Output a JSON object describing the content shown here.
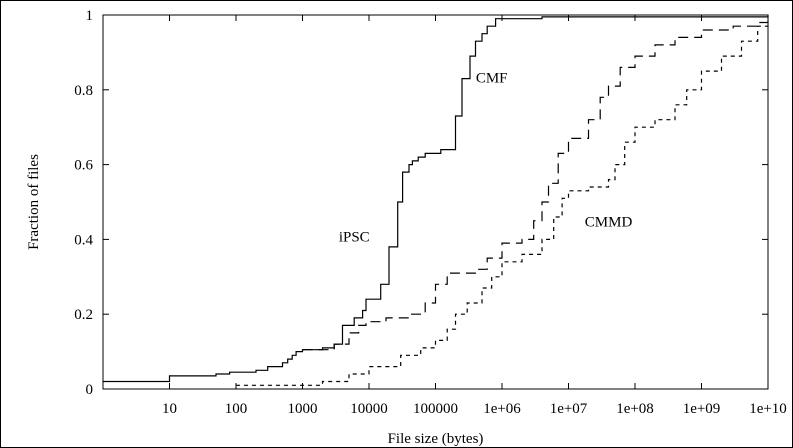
{
  "chart_data": {
    "type": "line",
    "xlabel": "File size (bytes)",
    "ylabel": "Fraction of files",
    "x_scale": "log",
    "xlim": [
      1,
      10000000000
    ],
    "ylim": [
      0,
      1
    ],
    "x_ticks": [
      {
        "value": 10,
        "label": "10"
      },
      {
        "value": 100,
        "label": "100"
      },
      {
        "value": 1000,
        "label": "1000"
      },
      {
        "value": 10000,
        "label": "10000"
      },
      {
        "value": 100000,
        "label": "100000"
      },
      {
        "value": 1000000,
        "label": "1e+06"
      },
      {
        "value": 10000000,
        "label": "1e+07"
      },
      {
        "value": 100000000,
        "label": "1e+08"
      },
      {
        "value": 1000000000,
        "label": "1e+09"
      },
      {
        "value": 10000000000,
        "label": "1e+10"
      }
    ],
    "y_ticks": [
      {
        "value": 0,
        "label": "0"
      },
      {
        "value": 0.2,
        "label": "0.2"
      },
      {
        "value": 0.4,
        "label": "0.4"
      },
      {
        "value": 0.6,
        "label": "0.6"
      },
      {
        "value": 0.8,
        "label": "0.8"
      },
      {
        "value": 1,
        "label": "1"
      }
    ],
    "grid": false,
    "series": [
      {
        "name": "iPSC",
        "style": "solid",
        "color": "#000000",
        "label_at": {
          "x": 6000,
          "y": 0.395
        },
        "points": [
          [
            1,
            0.02
          ],
          [
            10,
            0.02
          ],
          [
            10,
            0.035
          ],
          [
            50,
            0.04
          ],
          [
            80,
            0.045
          ],
          [
            200,
            0.05
          ],
          [
            300,
            0.06
          ],
          [
            500,
            0.07
          ],
          [
            600,
            0.08
          ],
          [
            700,
            0.09
          ],
          [
            800,
            0.1
          ],
          [
            1000,
            0.105
          ],
          [
            2000,
            0.11
          ],
          [
            3000,
            0.12
          ],
          [
            4000,
            0.17
          ],
          [
            6000,
            0.19
          ],
          [
            8000,
            0.21
          ],
          [
            9000,
            0.24
          ],
          [
            15000,
            0.28
          ],
          [
            20000,
            0.38
          ],
          [
            27000,
            0.5
          ],
          [
            32000,
            0.58
          ],
          [
            40000,
            0.6
          ],
          [
            45000,
            0.61
          ],
          [
            55000,
            0.62
          ],
          [
            70000,
            0.63
          ],
          [
            120000,
            0.64
          ],
          [
            200000,
            0.73
          ],
          [
            250000,
            0.83
          ],
          [
            330000,
            0.89
          ],
          [
            400000,
            0.93
          ],
          [
            500000,
            0.95
          ],
          [
            600000,
            0.97
          ],
          [
            800000,
            0.99
          ],
          [
            1000000,
            0.99
          ],
          [
            4000000,
            0.995
          ],
          [
            10000000000,
            1.0
          ]
        ]
      },
      {
        "name": "CMF",
        "style": "dashed",
        "color": "#000000",
        "label_at": {
          "x": 700000,
          "y": 0.82
        },
        "points": [
          [
            1000,
            0.105
          ],
          [
            3000,
            0.12
          ],
          [
            5000,
            0.15
          ],
          [
            7000,
            0.17
          ],
          [
            9000,
            0.18
          ],
          [
            18000,
            0.19
          ],
          [
            40000,
            0.2
          ],
          [
            70000,
            0.23
          ],
          [
            100000,
            0.28
          ],
          [
            150000,
            0.31
          ],
          [
            400000,
            0.32
          ],
          [
            600000,
            0.35
          ],
          [
            1000000,
            0.39
          ],
          [
            2000000,
            0.4
          ],
          [
            3000000,
            0.45
          ],
          [
            4000000,
            0.5
          ],
          [
            5000000,
            0.55
          ],
          [
            7000000,
            0.63
          ],
          [
            10000000,
            0.67
          ],
          [
            20000000,
            0.72
          ],
          [
            30000000,
            0.78
          ],
          [
            40000000,
            0.81
          ],
          [
            60000000,
            0.86
          ],
          [
            100000000,
            0.89
          ],
          [
            200000000,
            0.92
          ],
          [
            400000000,
            0.94
          ],
          [
            1000000000,
            0.96
          ],
          [
            3000000000,
            0.97
          ],
          [
            7000000000,
            0.98
          ],
          [
            10000000000,
            0.985
          ]
        ]
      },
      {
        "name": "CMMD",
        "style": "dotted",
        "color": "#000000",
        "label_at": {
          "x": 40000000,
          "y": 0.435
        },
        "points": [
          [
            100,
            0.01
          ],
          [
            1000,
            0.01
          ],
          [
            2000,
            0.02
          ],
          [
            5000,
            0.04
          ],
          [
            10000,
            0.06
          ],
          [
            30000,
            0.09
          ],
          [
            60000,
            0.11
          ],
          [
            100000,
            0.13
          ],
          [
            150000,
            0.16
          ],
          [
            200000,
            0.2
          ],
          [
            300000,
            0.23
          ],
          [
            500000,
            0.27
          ],
          [
            700000,
            0.3
          ],
          [
            1000000,
            0.34
          ],
          [
            2000000,
            0.36
          ],
          [
            4000000,
            0.4
          ],
          [
            6000000,
            0.46
          ],
          [
            8000000,
            0.51
          ],
          [
            10000000,
            0.53
          ],
          [
            20000000,
            0.54
          ],
          [
            40000000,
            0.56
          ],
          [
            50000000,
            0.6
          ],
          [
            70000000,
            0.66
          ],
          [
            100000000,
            0.7
          ],
          [
            200000000,
            0.72
          ],
          [
            400000000,
            0.76
          ],
          [
            600000000,
            0.8
          ],
          [
            1000000000,
            0.85
          ],
          [
            2000000000,
            0.89
          ],
          [
            4000000000,
            0.93
          ],
          [
            7000000000,
            0.97
          ],
          [
            10000000000,
            0.985
          ]
        ]
      }
    ]
  }
}
